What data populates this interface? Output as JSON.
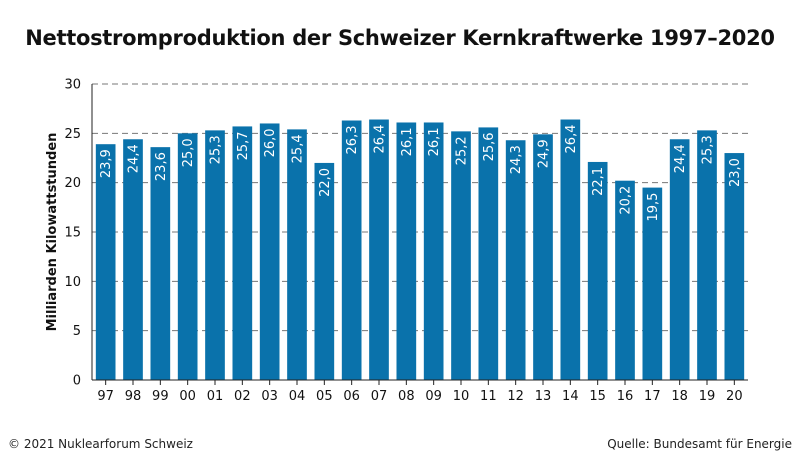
{
  "chart_data": {
    "type": "bar",
    "title": "Nettostromproduktion der Schweizer Kernkraftwerke 1997–2020",
    "ylabel": "Milliarden Kilowattstunden",
    "xlabel": "",
    "ylim": [
      0,
      30
    ],
    "yticks": [
      "0",
      "5",
      "10",
      "15",
      "20",
      "25",
      "30"
    ],
    "grid": true,
    "bar_color": "#0a72ab",
    "categories": [
      "97",
      "98",
      "99",
      "00",
      "01",
      "02",
      "03",
      "04",
      "05",
      "06",
      "07",
      "08",
      "09",
      "10",
      "11",
      "12",
      "13",
      "14",
      "15",
      "16",
      "17",
      "18",
      "19",
      "20"
    ],
    "values": [
      23.9,
      24.4,
      23.6,
      25.0,
      25.3,
      25.7,
      26.0,
      25.4,
      22.0,
      26.3,
      26.4,
      26.1,
      26.1,
      25.2,
      25.6,
      24.3,
      24.9,
      26.4,
      22.1,
      20.2,
      19.5,
      24.4,
      25.3,
      23.0
    ],
    "value_labels": [
      "23,9",
      "24,4",
      "23,6",
      "25,0",
      "25,3",
      "25,7",
      "26,0",
      "25,4",
      "22,0",
      "26,3",
      "26,4",
      "26,1",
      "26,1",
      "25,2",
      "25,6",
      "24,3",
      "24,9",
      "26,4",
      "22,1",
      "20,2",
      "19,5",
      "24,4",
      "25,3",
      "23,0"
    ]
  },
  "footer": {
    "copyright": "© 2021 Nuklearforum Schweiz",
    "source": "Quelle: Bundesamt für Energie"
  }
}
